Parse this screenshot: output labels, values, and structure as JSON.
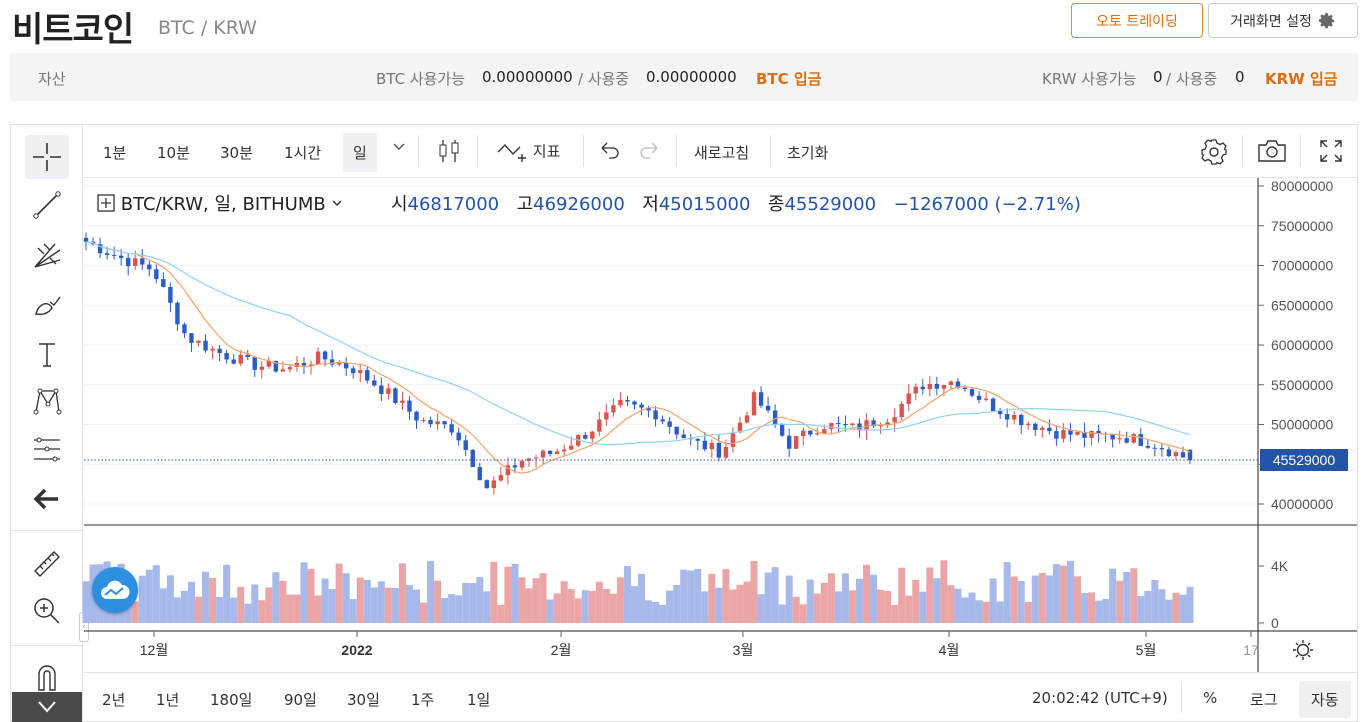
{
  "header": {
    "coin_name": "비트코인",
    "pair": "BTC / KRW",
    "auto_trading": "오토 트레이딩",
    "screen_settings": "거래화면 설정"
  },
  "assets": {
    "label": "자산",
    "btc_available_label": "BTC 사용가능",
    "btc_available": "0.00000000",
    "in_use_label_sep": "/ 사용중",
    "btc_in_use": "0.00000000",
    "btc_deposit": "BTC 입금",
    "krw_available_label": "KRW 사용가능",
    "krw_available": "0",
    "krw_in_use": "0",
    "krw_deposit": "KRW 입금"
  },
  "toolbar": {
    "resolutions": [
      "1분",
      "10분",
      "30분",
      "1시간",
      "일"
    ],
    "active_resolution": "일",
    "indicator": "지표",
    "refresh": "새로고침",
    "reset": "초기화"
  },
  "legend": {
    "symbol": "BTC/KRW, 일, BITHUMB",
    "open_label": "시",
    "open": "46817000",
    "high_label": "고",
    "high": "46926000",
    "low_label": "저",
    "low": "45015000",
    "close_label": "종",
    "close": "45529000",
    "change": "−1267000 (−2.71%)"
  },
  "price_axis": [
    "80000000",
    "75000000",
    "70000000",
    "65000000",
    "60000000",
    "55000000",
    "50000000",
    "45000000",
    "40000000"
  ],
  "last_price_tag": "45529000",
  "volume_axis": [
    "4K",
    "0"
  ],
  "time_axis": [
    "12월",
    "2022",
    "2월",
    "3월",
    "4월",
    "5월",
    "17"
  ],
  "bottom": {
    "ranges": [
      "2년",
      "1년",
      "180일",
      "90일",
      "30일",
      "1주",
      "1일"
    ],
    "clock": "20:02:42 (UTC+9)",
    "percent": "%",
    "log": "로그",
    "auto": "자동"
  },
  "colors": {
    "up": "#d9534f",
    "down": "#2a5cc4",
    "ma_short": "#f2a46a",
    "ma_long": "#8fd3ec",
    "accent": "#e06d10"
  },
  "chart_data": {
    "type": "candlestick",
    "ylim": [
      40000000,
      80000000
    ],
    "last_candle": {
      "open": 46817000,
      "high": 46926000,
      "low": 45015000,
      "close": 45529000
    },
    "close_trend": [
      73000000,
      71000000,
      69500000,
      61000000,
      59000000,
      57500000,
      57000000,
      58500000,
      57000000,
      54000000,
      50500000,
      49500000,
      42000000,
      45500000,
      46500000,
      49000000,
      52500000,
      51500000,
      48000000,
      46500000,
      53500000,
      47500000,
      50000000,
      49500000,
      51000000,
      55000000,
      55500000,
      52500000,
      50500000,
      49000000,
      48500000,
      48500000,
      47500000,
      45529000
    ]
  }
}
